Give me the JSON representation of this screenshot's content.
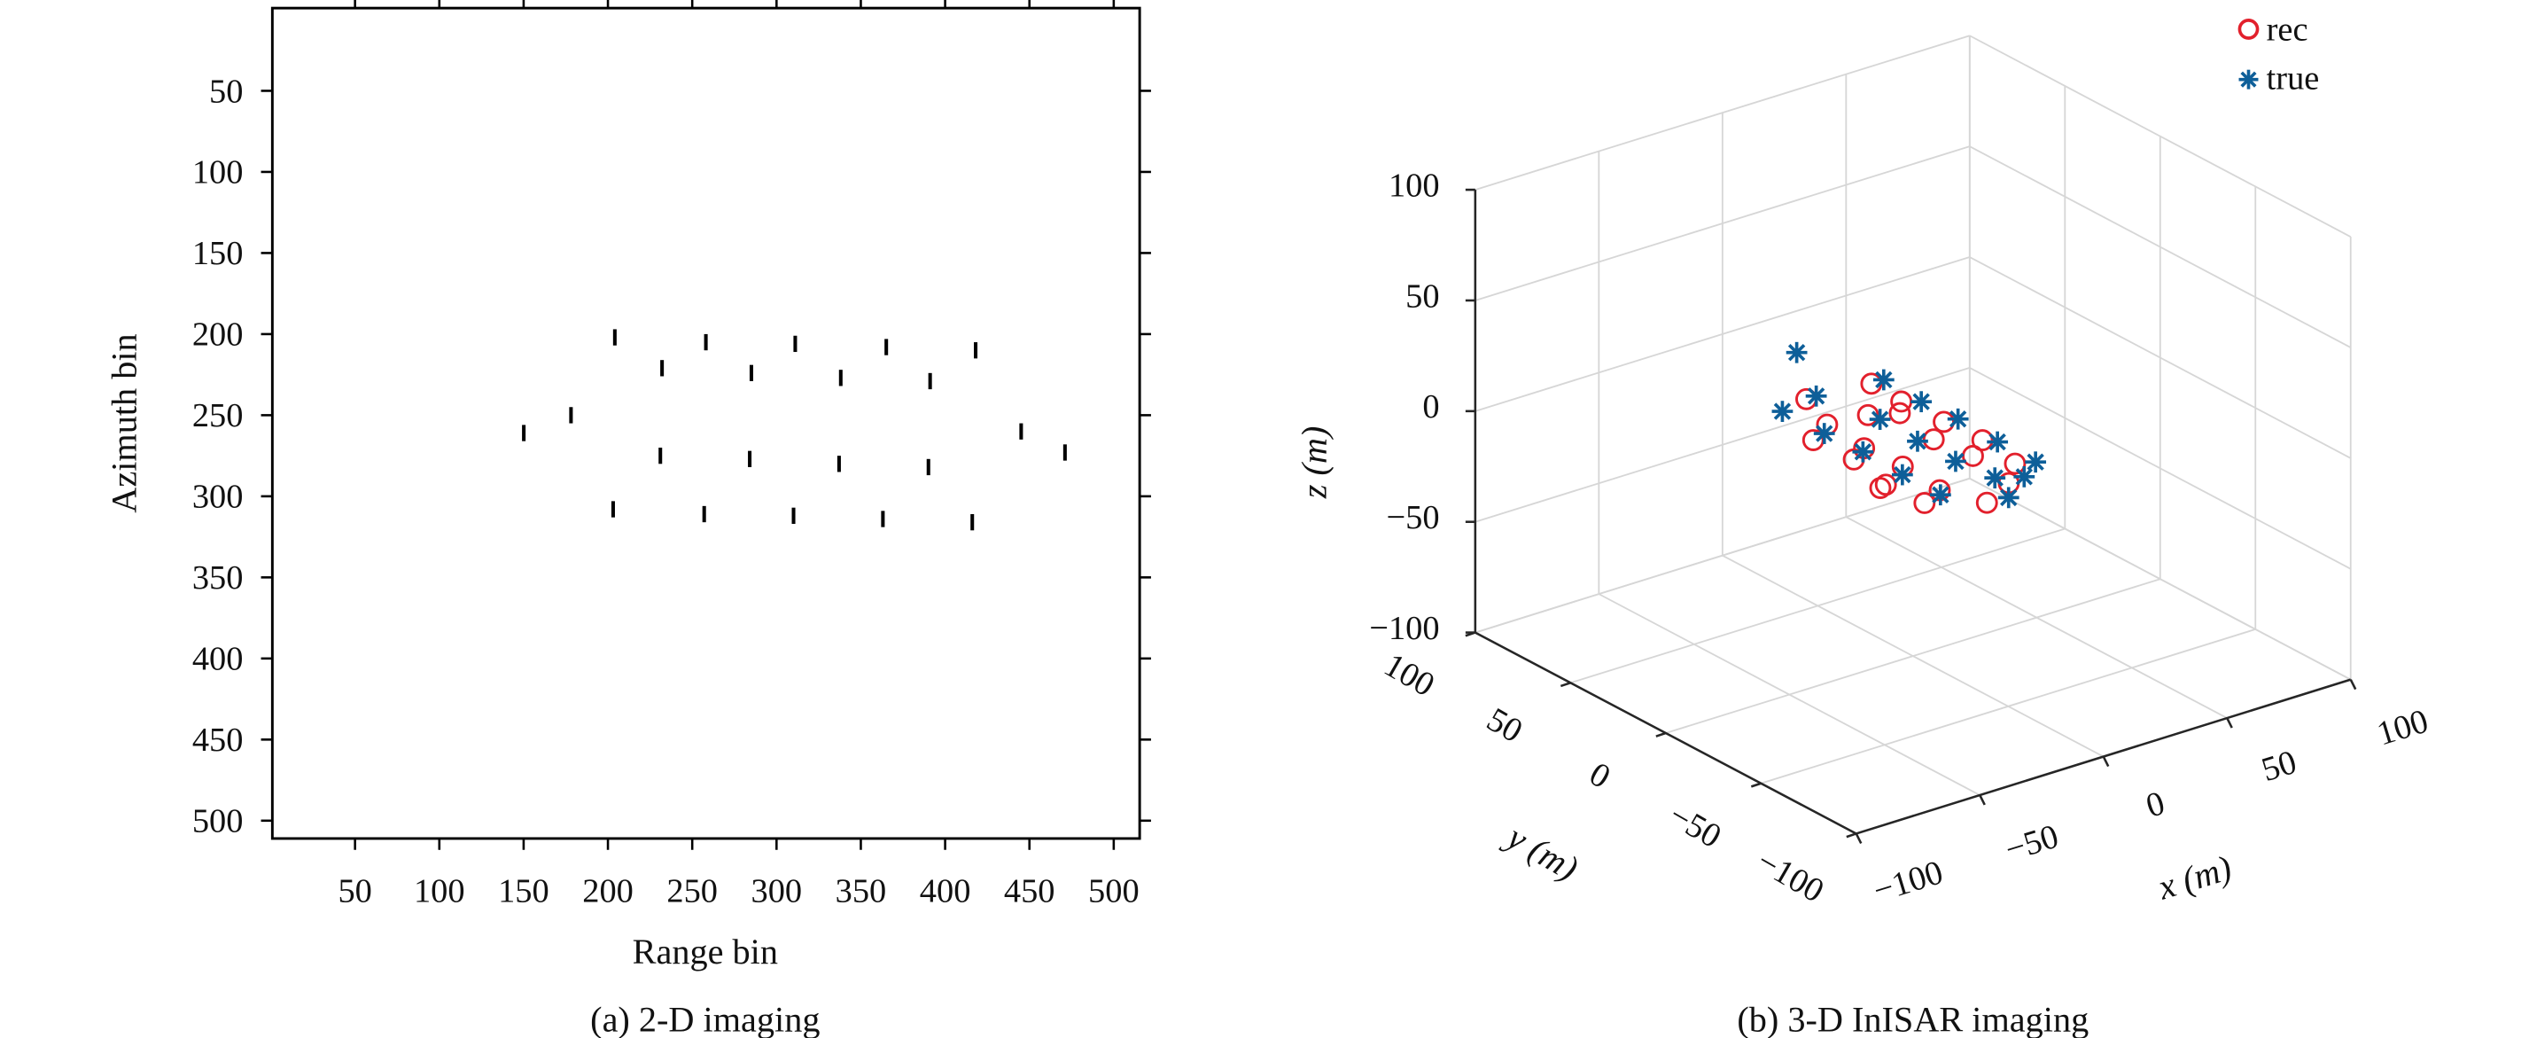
{
  "chart_data": [
    {
      "type": "scatter",
      "title": "",
      "caption": "(a) 2-D imaging",
      "xlabel": "Range bin",
      "ylabel": "Azimuth bin",
      "xlim": [
        0,
        512
      ],
      "ylim": [
        512,
        0
      ],
      "y_reversed": true,
      "xticks": [
        50,
        100,
        150,
        200,
        250,
        300,
        350,
        400,
        450,
        500
      ],
      "yticks": [
        50,
        100,
        150,
        200,
        250,
        300,
        350,
        400,
        450,
        500
      ],
      "xtick_labels": [
        "50",
        "100",
        "150",
        "200",
        "250",
        "300",
        "350",
        "400",
        "450",
        "500"
      ],
      "ytick_labels": [
        "50",
        "100",
        "150",
        "200",
        "250",
        "300",
        "350",
        "400",
        "450",
        "500"
      ],
      "grid": false,
      "marker_color": "#000000",
      "points": [
        [
          150,
          261
        ],
        [
          178,
          250
        ],
        [
          204,
          202
        ],
        [
          232,
          221
        ],
        [
          258,
          205
        ],
        [
          285,
          224
        ],
        [
          311,
          206
        ],
        [
          338,
          227
        ],
        [
          365,
          208
        ],
        [
          391,
          229
        ],
        [
          418,
          210
        ],
        [
          445,
          260
        ],
        [
          471,
          273
        ],
        [
          231,
          275
        ],
        [
          284,
          277
        ],
        [
          337,
          280
        ],
        [
          390,
          282
        ],
        [
          203,
          308
        ],
        [
          257,
          311
        ],
        [
          310,
          312
        ],
        [
          363,
          314
        ],
        [
          416,
          316
        ]
      ]
    },
    {
      "type": "scatter3d",
      "title": "",
      "caption": "(b) 3-D InISAR imaging",
      "xlabel": "x (m)",
      "ylabel": "y (m)",
      "zlabel": "z (m)",
      "xlim": [
        -100,
        100
      ],
      "ylim": [
        -100,
        100
      ],
      "zlim": [
        -100,
        100
      ],
      "xticks": [
        -100,
        -50,
        0,
        50,
        100
      ],
      "yticks": [
        -100,
        -50,
        0,
        50,
        100
      ],
      "zticks": [
        -100,
        -50,
        0,
        50,
        100
      ],
      "xtick_labels": [
        "−100",
        "−50",
        "0",
        "50",
        "100"
      ],
      "ytick_labels": [
        "−100",
        "−50",
        "0",
        "50",
        "100"
      ],
      "ztick_labels": [
        "−100",
        "−50",
        "0",
        "50",
        "100"
      ],
      "grid": true,
      "legend": {
        "placement": "top-right",
        "entries": [
          "rec",
          "true"
        ]
      },
      "series": [
        {
          "name": "rec",
          "marker": "circle",
          "color": "#e2202c",
          "points": [
            [
              -10,
              43,
              0
            ],
            [
              -17,
              23,
              0
            ],
            [
              -28,
              16,
              0
            ],
            [
              14,
              40,
              0
            ],
            [
              -2,
              21,
              0
            ],
            [
              13,
              23,
              0
            ],
            [
              7,
              16,
              0
            ],
            [
              14,
              2,
              0
            ],
            [
              3,
              -7,
              0
            ],
            [
              15,
              -17,
              0
            ],
            [
              5,
              -25,
              0
            ],
            [
              12,
              -38,
              0
            ],
            [
              1,
              -49,
              0
            ],
            [
              -14,
              -57,
              0
            ],
            [
              -30,
              -45,
              0
            ],
            [
              -20,
              -40,
              0
            ],
            [
              -31,
              -26,
              0
            ],
            [
              -34,
              -27,
              0
            ],
            [
              -18,
              -18,
              0
            ],
            [
              -19,
              1,
              0
            ],
            [
              -27,
              -4,
              0
            ]
          ]
        },
        {
          "name": "true",
          "marker": "asterisk",
          "color": "#0e5f99",
          "points": [
            [
              10,
              74,
              0
            ],
            [
              -6,
              43,
              0
            ],
            [
              -22,
              40,
              0
            ],
            [
              19,
              40,
              0
            ],
            [
              18,
              19,
              0
            ],
            [
              -1,
              16,
              0
            ],
            [
              -22,
              18,
              0
            ],
            [
              -2,
              -5,
              0
            ],
            [
              19,
              1,
              0
            ],
            [
              18,
              -21,
              0
            ],
            [
              -2,
              -25,
              0
            ],
            [
              -21,
              -1,
              0
            ],
            [
              -22,
              -23,
              0
            ],
            [
              0,
              -43,
              0
            ],
            [
              8,
              -48,
              0
            ],
            [
              18,
              -41,
              0
            ],
            [
              -6,
              -58,
              0
            ],
            [
              -22,
              -43,
              0
            ]
          ]
        }
      ]
    }
  ]
}
